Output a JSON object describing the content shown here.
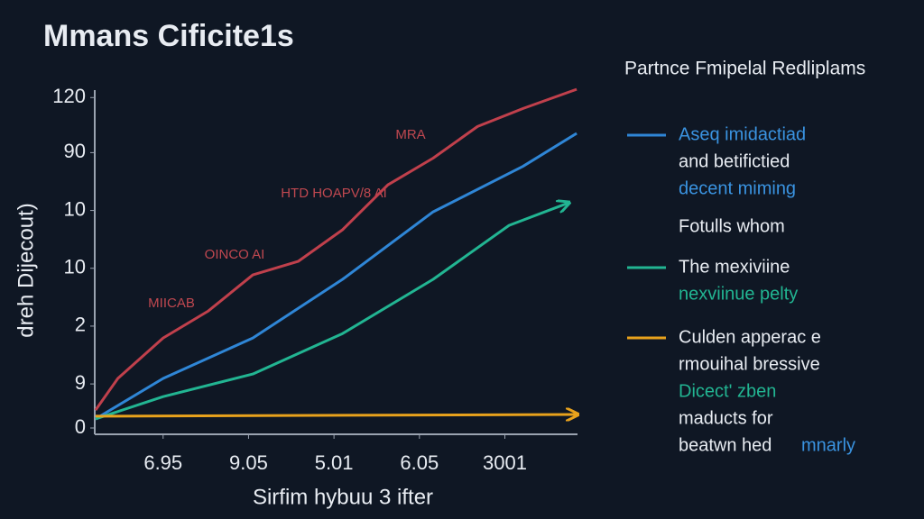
{
  "chart_data": {
    "type": "line",
    "title": "Mmans Cificite1s",
    "xlabel": "Sirfim hybuu 3 ifter",
    "ylabel": "dreh Dijecout)",
    "xlim": [
      0.2,
      5.85
    ],
    "ylim": [
      0,
      125
    ],
    "xticks": [
      {
        "value": 1,
        "label": "6.95"
      },
      {
        "value": 2,
        "label": "9.05"
      },
      {
        "value": 3,
        "label": "5.01"
      },
      {
        "value": 4,
        "label": "6.05"
      },
      {
        "value": 5,
        "label": "3001"
      }
    ],
    "yticks": [
      0,
      {
        "value": 16,
        "label": "9"
      },
      {
        "value": 37,
        "label": "2"
      },
      {
        "value": 58,
        "label": "10"
      },
      {
        "value": 79,
        "label": "10"
      },
      {
        "value": 100,
        "label": "90"
      },
      120
    ],
    "annotations": [
      "MRA",
      "HTD HOAPV/8 AI",
      "OINCO AI",
      "MIICAB"
    ],
    "legend_title": "Partnce Fmipelal Redliplams",
    "legend_notes": [
      "and betifictied",
      "decent miming",
      "Fotulls whom",
      "nexviinue pelty",
      "rmouihal bressive",
      "Dicect' zben",
      "maducts for",
      "beatwn hed",
      "mnarly"
    ],
    "series": [
      {
        "color": "#c0404c",
        "x": [
          0.21,
          0.47,
          1,
          1.53,
          2.05,
          2.58,
          3.1,
          3.63,
          4.16,
          4.68,
          5.21,
          5.84
        ],
        "values": [
          6.5,
          18,
          32.7,
          42.5,
          55.6,
          60.5,
          72,
          88.3,
          98,
          109.5,
          116,
          123
        ]
      },
      {
        "name": "Aseq imidactiad",
        "color": "#2f86d6",
        "x": [
          0.21,
          1,
          2.05,
          3.1,
          4.16,
          5.21,
          5.84
        ],
        "values": [
          3.3,
          18,
          32.7,
          54,
          78.5,
          95,
          107
        ]
      },
      {
        "name": "The mexiviine",
        "color": "#22b592",
        "x": [
          0.21,
          1,
          2.05,
          3.1,
          4.16,
          5.05,
          5.74
        ],
        "values": [
          3.3,
          11.4,
          19.6,
          34.3,
          54,
          73.6,
          81.7
        ]
      },
      {
        "name": "Culden apperac e",
        "color": "#e8a21c",
        "x": [
          0.21,
          5.84
        ],
        "values": [
          4.3,
          4.9
        ]
      }
    ]
  }
}
